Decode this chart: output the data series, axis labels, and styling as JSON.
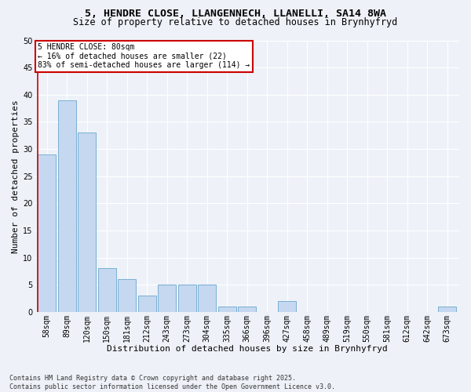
{
  "title_line1": "5, HENDRE CLOSE, LLANGENNECH, LLANELLI, SA14 8WA",
  "title_line2": "Size of property relative to detached houses in Brynhyfryd",
  "categories": [
    "58sqm",
    "89sqm",
    "120sqm",
    "150sqm",
    "181sqm",
    "212sqm",
    "243sqm",
    "273sqm",
    "304sqm",
    "335sqm",
    "366sqm",
    "396sqm",
    "427sqm",
    "458sqm",
    "489sqm",
    "519sqm",
    "550sqm",
    "581sqm",
    "612sqm",
    "642sqm",
    "673sqm"
  ],
  "values": [
    29,
    39,
    33,
    8,
    6,
    3,
    5,
    5,
    5,
    1,
    1,
    0,
    2,
    0,
    0,
    0,
    0,
    0,
    0,
    0,
    1
  ],
  "bar_color": "#c5d8f0",
  "bar_edge_color": "#7aafd4",
  "vline_color": "#cc0000",
  "xlabel": "Distribution of detached houses by size in Brynhyfryd",
  "ylabel": "Number of detached properties",
  "ylim": [
    0,
    50
  ],
  "yticks": [
    0,
    5,
    10,
    15,
    20,
    25,
    30,
    35,
    40,
    45,
    50
  ],
  "annotation_title": "5 HENDRE CLOSE: 80sqm",
  "annotation_line1": "← 16% of detached houses are smaller (22)",
  "annotation_line2": "83% of semi-detached houses are larger (114) →",
  "annotation_box_color": "#ffffff",
  "annotation_box_edge": "#cc0000",
  "footer_line1": "Contains HM Land Registry data © Crown copyright and database right 2025.",
  "footer_line2": "Contains public sector information licensed under the Open Government Licence v3.0.",
  "background_color": "#eef2f8",
  "grid_color": "#ffffff",
  "title1_fontsize": 9.5,
  "title2_fontsize": 8.5,
  "axis_fontsize": 8,
  "tick_fontsize": 7,
  "footer_fontsize": 6
}
